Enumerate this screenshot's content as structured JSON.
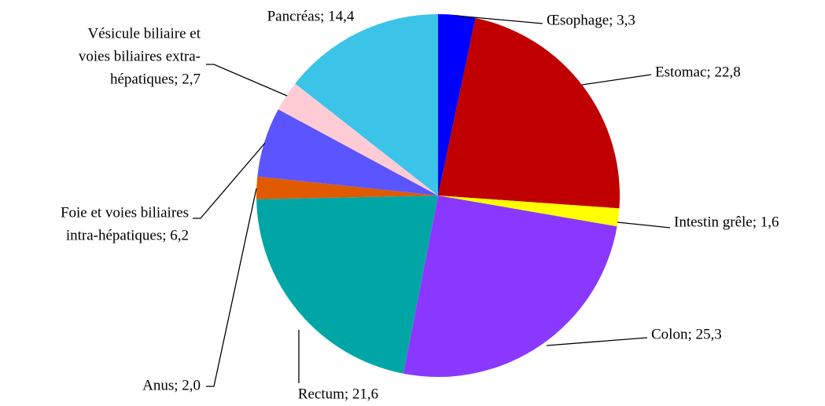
{
  "chart_data": {
    "type": "pie",
    "labels": [
      [
        "Œsophage; 3,3"
      ],
      [
        "Estomac; 22,8"
      ],
      [
        "Intestin grêle; 1,6"
      ],
      [
        "Colon; 25,3"
      ],
      [
        "Rectum; 21,6"
      ],
      [
        "Anus; 2,0"
      ],
      [
        "Foie et voies biliaires",
        "intra-hépatiques; 6,2"
      ],
      [
        "Vésicule biliaire et",
        "voies biliaires extra-",
        "hépatiques; 2,7"
      ],
      [
        "Pancréas; 14,4"
      ]
    ],
    "values": [
      3.3,
      22.8,
      1.6,
      25.3,
      21.6,
      2.0,
      6.2,
      2.7,
      14.4
    ],
    "colors": [
      "#0000ff",
      "#c00000",
      "#ffff00",
      "#8a38ff",
      "#00a6a6",
      "#e05a00",
      "#5a55ff",
      "#ffccd5",
      "#3cc3e8"
    ]
  }
}
